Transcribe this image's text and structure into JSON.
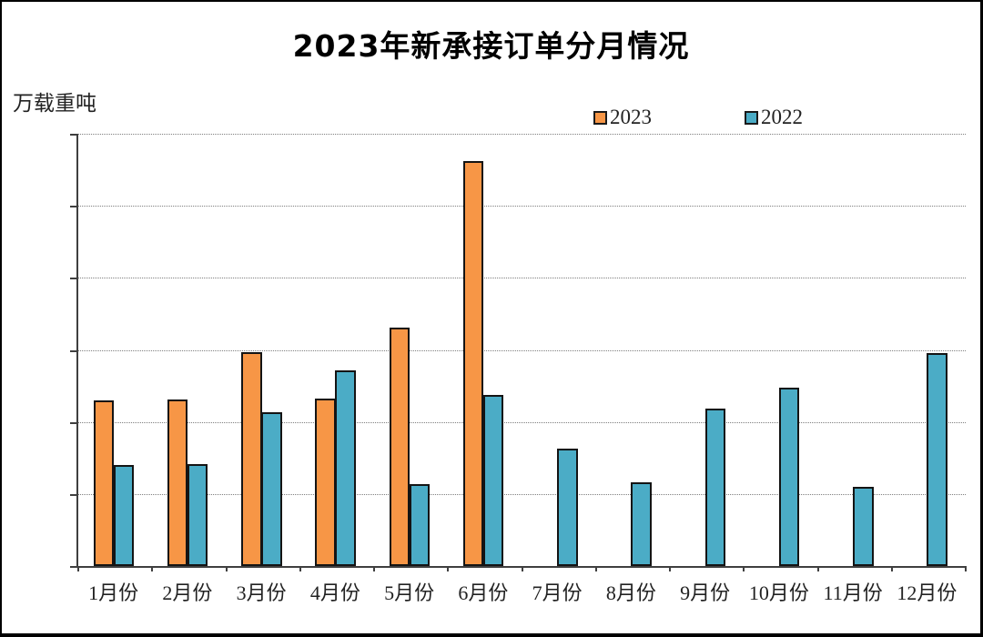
{
  "page": {
    "background": "#ffffff",
    "frame_color": "#000000"
  },
  "chart_data": {
    "type": "bar",
    "title": "2023年新承接订单分月情况",
    "unit_label": "万载重吨",
    "categories": [
      "1月份",
      "2月份",
      "3月份",
      "4月份",
      "5月份",
      "6月份",
      "7月份",
      "8月份",
      "9月份",
      "10月份",
      "11月份",
      "12月份"
    ],
    "series": [
      {
        "name": "2023",
        "color": "#F79646",
        "values": [
          460,
          462,
          593,
          466,
          661,
          1125,
          null,
          null,
          null,
          null,
          null,
          null
        ]
      },
      {
        "name": "2022",
        "color": "#4BACC6",
        "values": [
          280,
          283,
          428,
          543,
          228,
          475,
          327,
          232,
          437,
          495,
          220,
          590
        ]
      }
    ],
    "ylim": [
      0,
      1200
    ],
    "ytick_step": 200,
    "yticks": [
      0,
      200,
      400,
      600,
      800,
      1000,
      1200
    ],
    "grid": "horizontal-dotted",
    "legend_position": "top-inside-right",
    "bar_border_color": "#141414",
    "axis_color": "#3f3f3f"
  }
}
